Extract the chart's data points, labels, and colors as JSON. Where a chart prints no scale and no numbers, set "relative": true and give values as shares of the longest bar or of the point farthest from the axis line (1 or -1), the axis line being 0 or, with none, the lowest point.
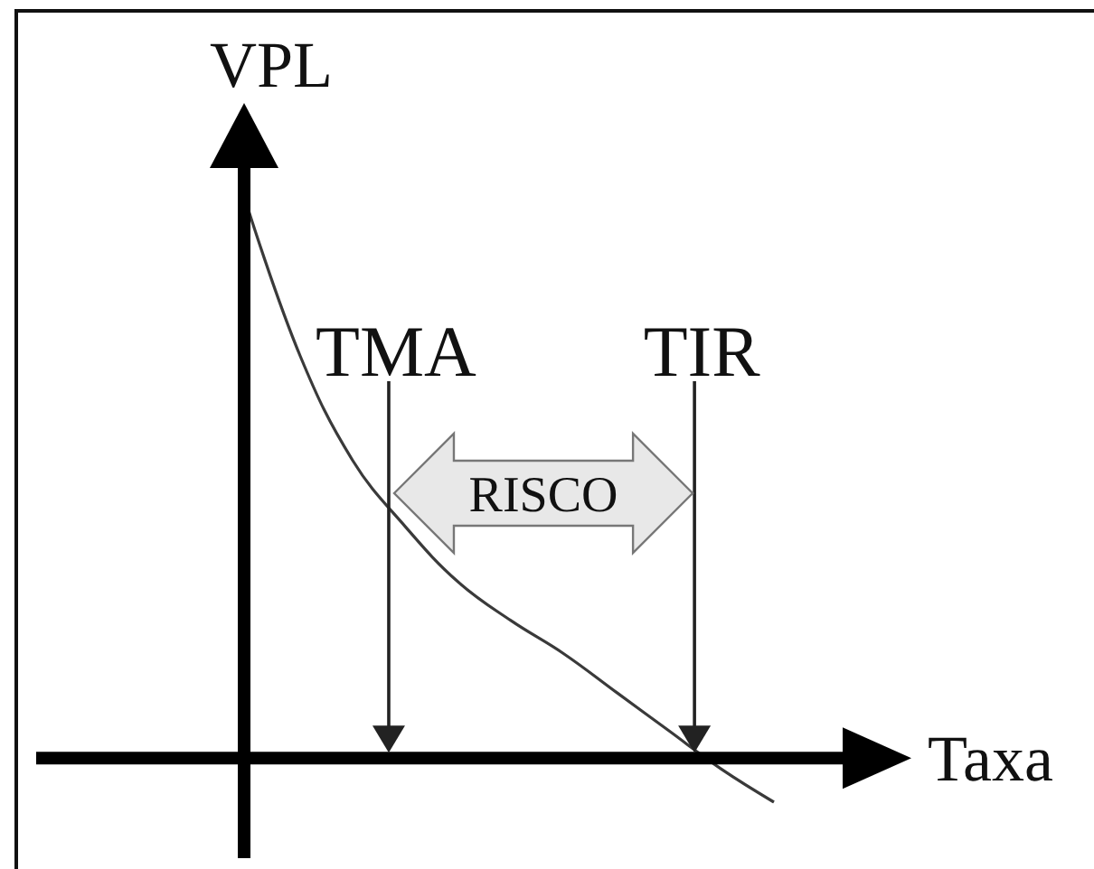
{
  "chart_data": {
    "type": "line",
    "relative": true,
    "marker": "none",
    "xlabel": "Taxa",
    "ylabel": "VPL",
    "categories": [
      null,
      null,
      null,
      null,
      null,
      null,
      null,
      null,
      null,
      null,
      null
    ],
    "values": [
      1.0,
      0.73,
      0.54,
      0.42,
      0.32,
      0.25,
      0.19,
      0.12,
      0.05,
      -0.02,
      -0.08
    ],
    "color": "#3a3a3a",
    "annotations": [
      "TMA",
      "TIR",
      "RISCO"
    ]
  }
}
